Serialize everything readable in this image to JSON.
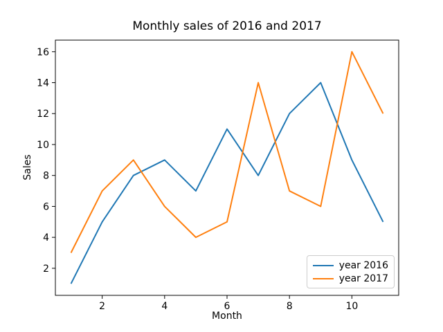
{
  "chart_data": {
    "type": "line",
    "title": "Monthly sales of 2016 and 2017",
    "xlabel": "Month",
    "ylabel": "Sales",
    "x": [
      1,
      2,
      3,
      4,
      5,
      6,
      7,
      8,
      9,
      10,
      11
    ],
    "series": [
      {
        "name": "year 2016",
        "color": "#1f77b4",
        "values": [
          1,
          5,
          8,
          9,
          7,
          11,
          8,
          12,
          14,
          9,
          5
        ]
      },
      {
        "name": "year 2017",
        "color": "#ff7f0e",
        "values": [
          3,
          7,
          9,
          6,
          4,
          5,
          14,
          7,
          6,
          16,
          12
        ]
      }
    ],
    "xlim": [
      0.5,
      11.5
    ],
    "ylim": [
      0.25,
      16.75
    ],
    "xticks": [
      2,
      4,
      6,
      8,
      10
    ],
    "yticks": [
      2,
      4,
      6,
      8,
      10,
      12,
      14,
      16
    ],
    "grid": false,
    "legend_position": "lower right",
    "spine_color": "#000000",
    "background_color": "#ffffff"
  }
}
